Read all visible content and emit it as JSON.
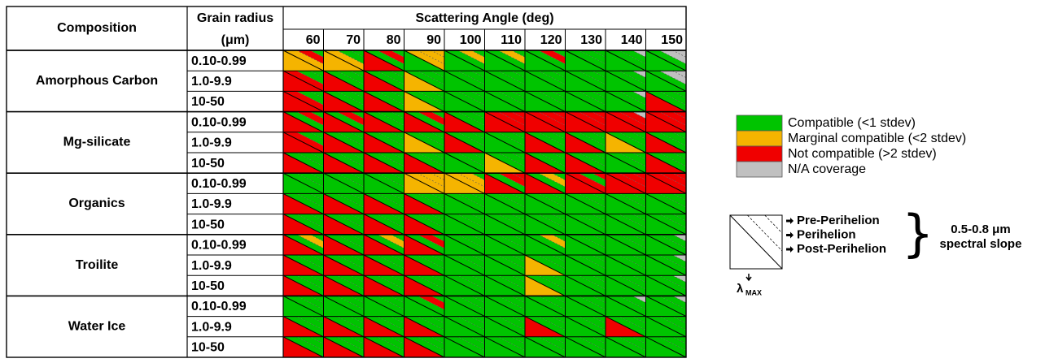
{
  "table": {
    "header": {
      "composition": "Composition",
      "grain_radius": "Grain radius",
      "grain_unit": "(μm)",
      "scattering": "Scattering Angle (deg)",
      "angles": [
        60,
        70,
        80,
        90,
        100,
        110,
        120,
        130,
        140,
        150
      ]
    },
    "groups": [
      {
        "composition": "Amorphous Carbon",
        "rows": [
          {
            "radius": "0.10-0.99",
            "cells": [
              [
                1,
                0,
                2,
                1
              ],
              [
                1,
                0,
                0,
                1
              ],
              [
                2,
                0,
                2,
                0
              ],
              [
                0,
                1,
                1,
                1
              ],
              [
                0,
                0,
                1,
                0
              ],
              [
                0,
                0,
                1,
                0
              ],
              [
                0,
                0,
                2,
                0
              ],
              [
                0,
                0,
                0,
                0
              ],
              [
                0,
                3,
                0,
                0
              ],
              [
                0,
                3,
                3,
                0
              ]
            ]
          },
          {
            "radius": "1.0-9.9",
            "cells": [
              [
                2,
                0,
                0,
                2
              ],
              [
                2,
                0,
                0,
                0
              ],
              [
                2,
                0,
                0,
                0
              ],
              [
                1,
                0,
                0,
                0
              ],
              [
                0,
                0,
                0,
                0
              ],
              [
                0,
                0,
                0,
                0
              ],
              [
                0,
                0,
                0,
                0
              ],
              [
                0,
                0,
                0,
                0
              ],
              [
                0,
                3,
                0,
                0
              ],
              [
                0,
                3,
                3,
                0
              ]
            ]
          },
          {
            "radius": "10-50",
            "cells": [
              [
                2,
                0,
                0,
                2
              ],
              [
                2,
                0,
                0,
                0
              ],
              [
                2,
                0,
                0,
                0
              ],
              [
                1,
                0,
                0,
                0
              ],
              [
                0,
                0,
                0,
                0
              ],
              [
                0,
                0,
                0,
                0
              ],
              [
                0,
                0,
                0,
                0
              ],
              [
                0,
                0,
                0,
                0
              ],
              [
                0,
                3,
                0,
                0
              ],
              [
                2,
                0,
                0,
                0
              ]
            ]
          }
        ]
      },
      {
        "composition": "Mg-silicate",
        "rows": [
          {
            "radius": "0.10-0.99",
            "cells": [
              [
                2,
                0,
                2,
                0
              ],
              [
                2,
                0,
                2,
                0
              ],
              [
                2,
                0,
                0,
                0
              ],
              [
                2,
                0,
                2,
                0
              ],
              [
                2,
                0,
                0,
                0
              ],
              [
                2,
                2,
                2,
                2
              ],
              [
                2,
                2,
                2,
                2
              ],
              [
                2,
                2,
                2,
                2
              ],
              [
                2,
                3,
                2,
                2
              ],
              [
                2,
                2,
                2,
                2
              ]
            ]
          },
          {
            "radius": "1.0-9.9",
            "cells": [
              [
                2,
                0,
                0,
                2
              ],
              [
                2,
                0,
                0,
                0
              ],
              [
                2,
                0,
                0,
                0
              ],
              [
                1,
                0,
                0,
                0
              ],
              [
                2,
                0,
                0,
                0
              ],
              [
                0,
                0,
                0,
                0
              ],
              [
                2,
                0,
                0,
                0
              ],
              [
                2,
                0,
                0,
                0
              ],
              [
                1,
                0,
                0,
                0
              ],
              [
                2,
                0,
                0,
                0
              ]
            ]
          },
          {
            "radius": "10-50",
            "cells": [
              [
                2,
                0,
                0,
                0
              ],
              [
                2,
                0,
                0,
                0
              ],
              [
                2,
                0,
                0,
                0
              ],
              [
                2,
                0,
                0,
                0
              ],
              [
                0,
                0,
                0,
                0
              ],
              [
                1,
                0,
                0,
                0
              ],
              [
                2,
                0,
                0,
                0
              ],
              [
                2,
                0,
                0,
                0
              ],
              [
                0,
                0,
                0,
                0
              ],
              [
                2,
                0,
                0,
                0
              ]
            ]
          }
        ]
      },
      {
        "composition": "Organics",
        "rows": [
          {
            "radius": "0.10-0.99",
            "cells": [
              [
                0,
                0,
                0,
                0
              ],
              [
                0,
                0,
                0,
                0
              ],
              [
                0,
                0,
                0,
                0
              ],
              [
                1,
                1,
                1,
                1
              ],
              [
                1,
                0,
                1,
                1
              ],
              [
                2,
                2,
                2,
                0
              ],
              [
                2,
                0,
                1,
                0
              ],
              [
                2,
                2,
                0,
                2
              ],
              [
                2,
                2,
                2,
                2
              ],
              [
                2,
                2,
                2,
                2
              ]
            ]
          },
          {
            "radius": "1.0-9.9",
            "cells": [
              [
                2,
                0,
                0,
                0
              ],
              [
                2,
                0,
                0,
                0
              ],
              [
                2,
                0,
                0,
                0
              ],
              [
                2,
                0,
                0,
                0
              ],
              [
                0,
                0,
                0,
                0
              ],
              [
                0,
                0,
                0,
                0
              ],
              [
                0,
                0,
                0,
                0
              ],
              [
                0,
                0,
                0,
                0
              ],
              [
                0,
                0,
                0,
                0
              ],
              [
                0,
                0,
                0,
                0
              ]
            ]
          },
          {
            "radius": "10-50",
            "cells": [
              [
                2,
                0,
                0,
                0
              ],
              [
                2,
                0,
                0,
                0
              ],
              [
                2,
                0,
                0,
                0
              ],
              [
                2,
                0,
                0,
                0
              ],
              [
                0,
                0,
                0,
                0
              ],
              [
                0,
                0,
                0,
                0
              ],
              [
                0,
                0,
                0,
                0
              ],
              [
                0,
                0,
                0,
                0
              ],
              [
                0,
                0,
                0,
                0
              ],
              [
                0,
                0,
                0,
                0
              ]
            ]
          }
        ]
      },
      {
        "composition": "Troilite",
        "rows": [
          {
            "radius": "0.10-0.99",
            "cells": [
              [
                2,
                0,
                1,
                0
              ],
              [
                2,
                0,
                0,
                0
              ],
              [
                2,
                0,
                1,
                0
              ],
              [
                2,
                0,
                2,
                0
              ],
              [
                0,
                0,
                0,
                0
              ],
              [
                0,
                0,
                0,
                0
              ],
              [
                0,
                0,
                1,
                0
              ],
              [
                0,
                0,
                0,
                0
              ],
              [
                0,
                0,
                0,
                0
              ],
              [
                0,
                3,
                0,
                0
              ]
            ]
          },
          {
            "radius": "1.0-9.9",
            "cells": [
              [
                2,
                0,
                0,
                0
              ],
              [
                2,
                0,
                0,
                0
              ],
              [
                2,
                0,
                0,
                0
              ],
              [
                2,
                0,
                0,
                0
              ],
              [
                0,
                0,
                0,
                0
              ],
              [
                0,
                0,
                0,
                0
              ],
              [
                1,
                0,
                0,
                0
              ],
              [
                0,
                0,
                0,
                0
              ],
              [
                0,
                0,
                0,
                0
              ],
              [
                0,
                3,
                0,
                0
              ]
            ]
          },
          {
            "radius": "10-50",
            "cells": [
              [
                2,
                0,
                0,
                0
              ],
              [
                2,
                0,
                0,
                0
              ],
              [
                2,
                0,
                0,
                0
              ],
              [
                2,
                0,
                0,
                0
              ],
              [
                0,
                0,
                0,
                0
              ],
              [
                0,
                0,
                0,
                0
              ],
              [
                1,
                0,
                0,
                0
              ],
              [
                0,
                0,
                0,
                0
              ],
              [
                0,
                0,
                0,
                0
              ],
              [
                0,
                3,
                0,
                0
              ]
            ]
          }
        ]
      },
      {
        "composition": "Water Ice",
        "rows": [
          {
            "radius": "0.10-0.99",
            "cells": [
              [
                0,
                0,
                0,
                0
              ],
              [
                0,
                0,
                0,
                0
              ],
              [
                0,
                0,
                0,
                0
              ],
              [
                0,
                0,
                2,
                0
              ],
              [
                0,
                0,
                0,
                0
              ],
              [
                0,
                0,
                0,
                0
              ],
              [
                0,
                0,
                0,
                0
              ],
              [
                0,
                0,
                0,
                0
              ],
              [
                0,
                3,
                0,
                0
              ],
              [
                0,
                3,
                0,
                0
              ]
            ]
          },
          {
            "radius": "1.0-9.9",
            "cells": [
              [
                2,
                0,
                0,
                0
              ],
              [
                2,
                0,
                0,
                0
              ],
              [
                2,
                0,
                0,
                0
              ],
              [
                2,
                0,
                0,
                0
              ],
              [
                0,
                0,
                0,
                0
              ],
              [
                0,
                0,
                0,
                0
              ],
              [
                2,
                0,
                0,
                0
              ],
              [
                0,
                0,
                0,
                0
              ],
              [
                2,
                0,
                0,
                0
              ],
              [
                0,
                0,
                0,
                0
              ]
            ]
          },
          {
            "radius": "10-50",
            "cells": [
              [
                2,
                0,
                0,
                0
              ],
              [
                2,
                0,
                0,
                0
              ],
              [
                2,
                0,
                0,
                0
              ],
              [
                2,
                0,
                0,
                0
              ],
              [
                0,
                0,
                0,
                0
              ],
              [
                0,
                0,
                0,
                0
              ],
              [
                0,
                0,
                0,
                0
              ],
              [
                0,
                0,
                0,
                0
              ],
              [
                0,
                0,
                0,
                0
              ],
              [
                0,
                0,
                0,
                0
              ]
            ]
          }
        ]
      }
    ]
  },
  "legend": {
    "items": [
      {
        "label": "Compatible (<1 stdev)",
        "color": "#00c400"
      },
      {
        "label": "Marginal compatible (<2 stdev)",
        "color": "#f5b400"
      },
      {
        "label": "Not compatible (>2 stdev)",
        "color": "#f00000"
      },
      {
        "label": "N/A coverage",
        "color": "#c0c0c0"
      }
    ]
  },
  "key": {
    "labels": [
      "Pre-Perihelion",
      "Perihelion",
      "Post-Perihelion"
    ],
    "lambda": "λ",
    "lambda_sub": "MAX",
    "range": "0.5-0.8 μm",
    "range_sub": "spectral slope"
  }
}
